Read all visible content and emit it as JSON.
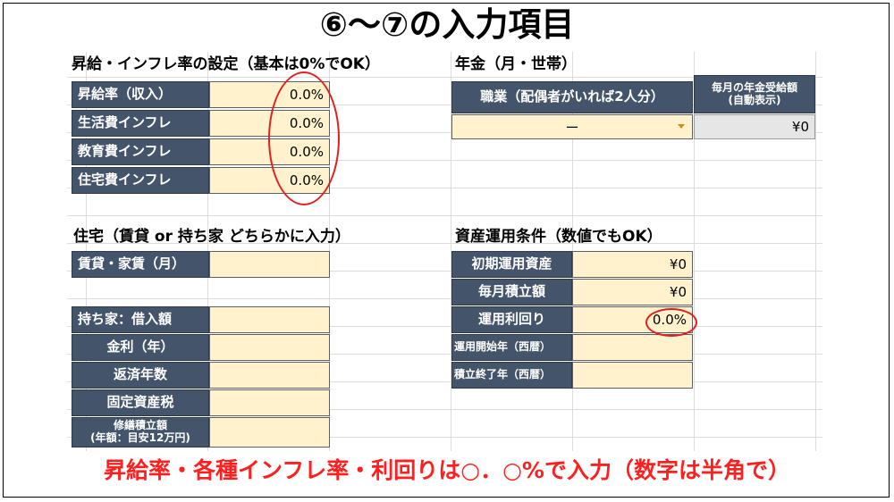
{
  "title": "⑥〜⑦の入力項目",
  "bottom_note": "昇給率・各種インフレ率・利回りは○．○%で入力（数字は半角で）",
  "raise_section": {
    "heading": "昇給・インフレ率の設定（基本は0%でOK）",
    "rows": [
      {
        "label": "昇給率（収入）",
        "value": "0.0%"
      },
      {
        "label": "生活費インフレ",
        "value": "0.0%"
      },
      {
        "label": "教育費インフレ",
        "value": "0.0%"
      },
      {
        "label": "住宅費インフレ",
        "value": "0.0%"
      }
    ]
  },
  "pension_section": {
    "heading": "年金（月・世帯）",
    "occupation_label": "職業（配偶者がいれば2人分）",
    "occupation_value": "ー",
    "monthly_label_line1": "毎月の年金受給額",
    "monthly_label_line2": "(自動表示)",
    "monthly_value": "¥0"
  },
  "housing_section": {
    "heading": "住宅（賃貸 or 持ち家 どちらかに入力）",
    "rent_label": "賃貸・家賃（月）",
    "loan_label": "持ち家：借入額",
    "interest_label": "金利（年）",
    "years_label": "返済年数",
    "tax_label": "固定資産税",
    "repair_label_line1": "修繕積立額",
    "repair_label_line2": "(年額：目安12万円)"
  },
  "asset_section": {
    "heading": "資産運用条件（数値でもOK）",
    "initial_label": "初期運用資産",
    "initial_value": "¥0",
    "monthly_label": "毎月積立額",
    "monthly_value": "¥0",
    "yield_label": "運用利回り",
    "yield_value": "0.0%",
    "start_label": "運用開始年（西暦）",
    "end_label": "積立終了年（西暦）"
  },
  "colors": {
    "label_bg": "#44546a",
    "input_bg": "#fff2cc",
    "highlight": "#e02020",
    "note": "#ff1f1f"
  }
}
